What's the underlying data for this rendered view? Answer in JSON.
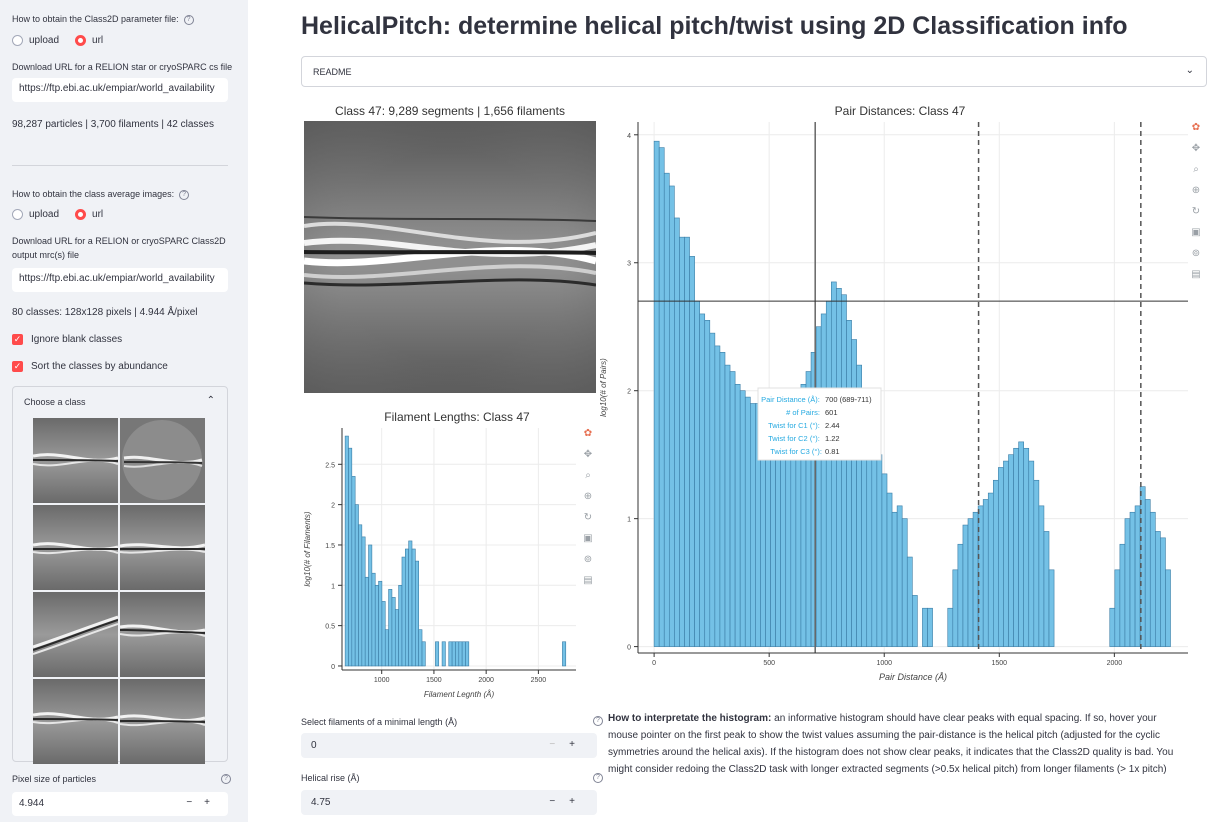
{
  "sidebar": {
    "param_label": "How to obtain the Class2D parameter file:",
    "param_options": [
      "upload",
      "url"
    ],
    "param_url_label": "Download URL for a RELION star or cryoSPARC cs file",
    "param_url_value": "https://ftp.ebi.ac.uk/empiar/world_availability",
    "param_summary": "98,287 particles | 3,700 filaments | 42 classes",
    "class_label": "How to obtain the class average images:",
    "class_options": [
      "upload",
      "url"
    ],
    "class_url_label_1": "Download URL for a RELION or cryoSPARC Class2D",
    "class_url_label_2": "output mrc(s) file",
    "class_url_value": "https://ftp.ebi.ac.uk/empiar/world_availability",
    "class_summary": "80 classes: 128x128 pixels | 4.944 Å/pixel",
    "ignore_blank": "Ignore blank classes",
    "sort_abundance": "Sort the classes by abundance",
    "choose_class": "Choose a class",
    "pixel_size_label": "Pixel size of particles",
    "pixel_size_value": "4.944",
    "check_mark": "✓",
    "chevron": "⌃",
    "help": "?"
  },
  "main": {
    "title": "HelicalPitch: determine helical pitch/twist using 2D Classification info",
    "readme": "README",
    "readme_chevron": "⌄",
    "class_image_title": "Class 47: 9,289 segments | 1,656 filaments",
    "min_length_label": "Select filaments of a minimal length (Å)",
    "min_length_value": "0",
    "rise_label": "Helical rise (Å)",
    "rise_value": "4.75",
    "stepper_minus": "−",
    "stepper_plus": "+",
    "interp_bold": "How to interpretate the histogram:",
    "interp_text": " an informative histogram should have clear peaks with equal spacing. If so, hover your mouse pointer on the first peak to show the twist values assuming the pair-distance is the helical pitch (adjusted for the cyclic symmetries around the helical axis). If the histogram does not show clear peaks, it indicates that the Class2D quality is bad. You might consider redoing the Class2D task with longer extracted segments (>0.5x helical pitch) from longer filaments (> 1x pitch)"
  },
  "tooltip": {
    "pair_distance_label": "Pair Distance (Å):",
    "pair_distance_value": "700 (689-711)",
    "pairs_label": "# of Pairs:",
    "pairs_value": "601",
    "c1_label": "Twist for C1 (°):",
    "c1_value": "2.44",
    "c2_label": "Twist for C2 (°):",
    "c2_value": "1.22",
    "c3_label": "Twist for C3 (°):",
    "c3_value": "0.81"
  },
  "colors": {
    "accent": "#ff4b4b",
    "bar_fill": "#74c1e6",
    "bar_stroke": "#3a7ca5"
  },
  "chart_data": [
    {
      "type": "bar",
      "title": "Filament Lengths: Class 47",
      "xlabel": "Filament Legnth (Å)",
      "ylabel": "log10(# of Filaments)",
      "xlim": [
        620,
        2860
      ],
      "ylim": [
        -0.05,
        2.95
      ],
      "xticks": [
        1000,
        1500,
        2000,
        2500
      ],
      "yticks": [
        0,
        0.5,
        1,
        1.5,
        2,
        2.5
      ],
      "bin_start": 650,
      "bin_width": 32,
      "values": [
        2.85,
        2.7,
        2.35,
        2.0,
        1.75,
        1.6,
        1.1,
        1.5,
        1.15,
        1.0,
        1.05,
        0.8,
        0.45,
        0.95,
        0.85,
        0.7,
        1.0,
        1.35,
        1.45,
        1.55,
        1.45,
        1.3,
        0.45,
        0.3,
        0,
        0,
        0,
        0.3,
        0,
        0.3,
        0,
        0.3,
        0.3,
        0.3,
        0.3,
        0.3,
        0.3,
        0,
        0,
        0,
        0,
        0,
        0,
        0,
        0,
        0,
        0,
        0,
        0,
        0,
        0,
        0,
        0,
        0,
        0,
        0,
        0,
        0,
        0,
        0,
        0,
        0,
        0,
        0,
        0,
        0.3
      ],
      "grid": true
    },
    {
      "type": "bar",
      "title": "Pair Distances: Class 47",
      "xlabel": "Pair Distance (Å)",
      "ylabel": "log10(# of Pairs)",
      "xlim": [
        -70,
        2320
      ],
      "ylim": [
        -0.05,
        4.1
      ],
      "xticks": [
        0,
        500,
        1000,
        1500,
        2000
      ],
      "yticks": [
        0,
        1,
        2,
        3,
        4
      ],
      "bin_start": 0,
      "bin_width": 22,
      "values": [
        3.95,
        3.9,
        3.7,
        3.6,
        3.35,
        3.2,
        3.2,
        3.05,
        2.7,
        2.6,
        2.55,
        2.45,
        2.35,
        2.3,
        2.2,
        2.15,
        2.05,
        2.0,
        1.95,
        1.9,
        1.9,
        1.85,
        1.8,
        1.75,
        1.75,
        1.7,
        1.8,
        1.85,
        1.95,
        2.05,
        2.15,
        2.3,
        2.5,
        2.6,
        2.7,
        2.85,
        2.8,
        2.75,
        2.55,
        2.4,
        2.2,
        2.0,
        1.8,
        1.65,
        1.5,
        1.35,
        1.2,
        1.05,
        1.1,
        1.0,
        0.7,
        0.4,
        0,
        0.3,
        0.3,
        0,
        0,
        0,
        0.3,
        0.6,
        0.8,
        0.95,
        1.0,
        1.05,
        1.1,
        1.15,
        1.2,
        1.3,
        1.4,
        1.45,
        1.5,
        1.55,
        1.6,
        1.55,
        1.45,
        1.3,
        1.1,
        0.9,
        0.6,
        0,
        0,
        0,
        0,
        0,
        0,
        0,
        0,
        0,
        0,
        0,
        0.3,
        0.6,
        0.8,
        1.0,
        1.05,
        1.1,
        1.25,
        1.15,
        1.05,
        0.9,
        0.85,
        0.6
      ],
      "hover_x": 700,
      "hover_y": 2.7,
      "pitch_lines": [
        1410,
        2115
      ],
      "grid": true
    }
  ]
}
